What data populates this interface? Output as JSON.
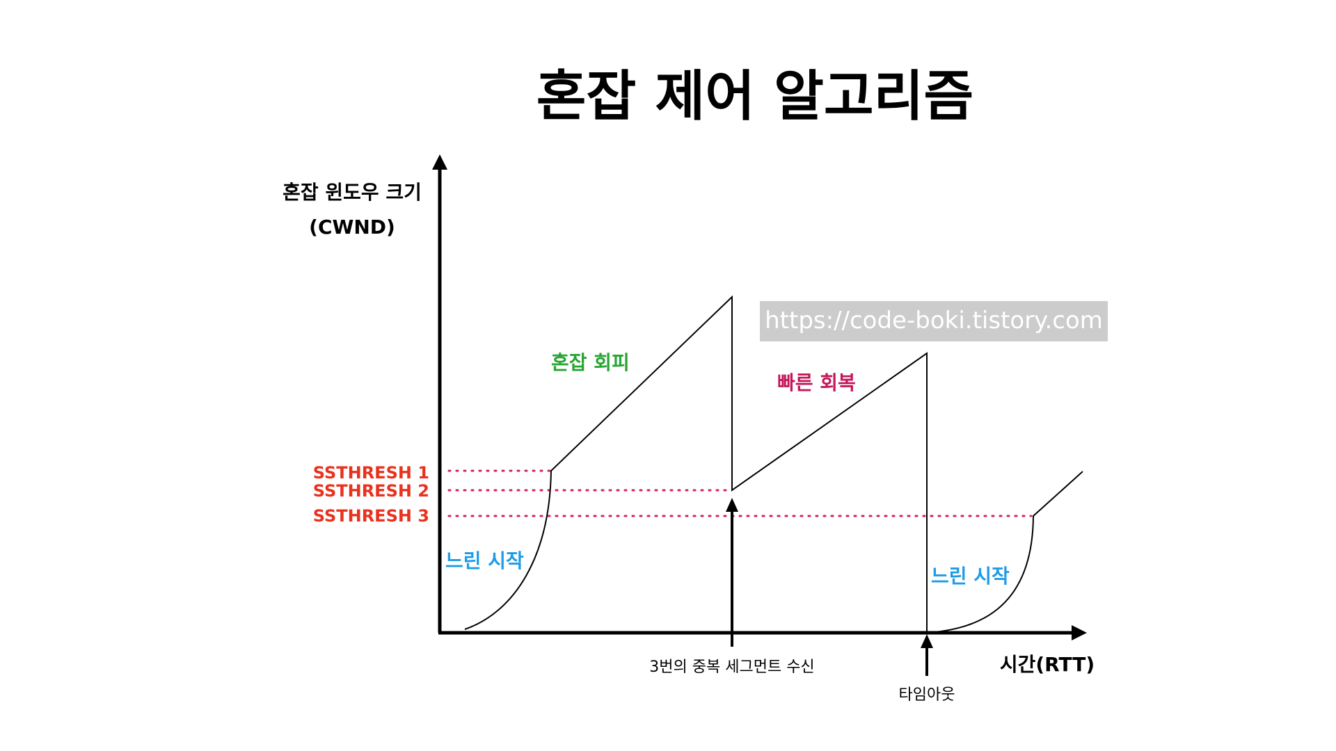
{
  "title": "혼잡 제어 알고리즘",
  "y_axis_label_line1": "혼잡 윈도우 크기",
  "y_axis_label_line2": "(CWND)",
  "x_axis_label": "시간(RTT)",
  "thresholds": [
    "SSTHRESH 1",
    "SSTHRESH 2",
    "SSTHRESH 3"
  ],
  "phases": {
    "slow_start_1": "느린 시작",
    "congestion_avoidance": "혼잡 회피",
    "fast_recovery": "빠른 회복",
    "slow_start_2": "느린 시작"
  },
  "events": {
    "triple_dup_ack": "3번의 중복 세그먼트 수신",
    "timeout": "타임아웃"
  },
  "watermark": "https://code-boki.tistory.com",
  "colors": {
    "threshold_text": "#e8321e",
    "threshold_line": "#d81b60",
    "slow_start": "#1e9be6",
    "congestion_avoidance": "#27a632",
    "fast_recovery": "#c2185b",
    "axis": "#000000"
  }
}
